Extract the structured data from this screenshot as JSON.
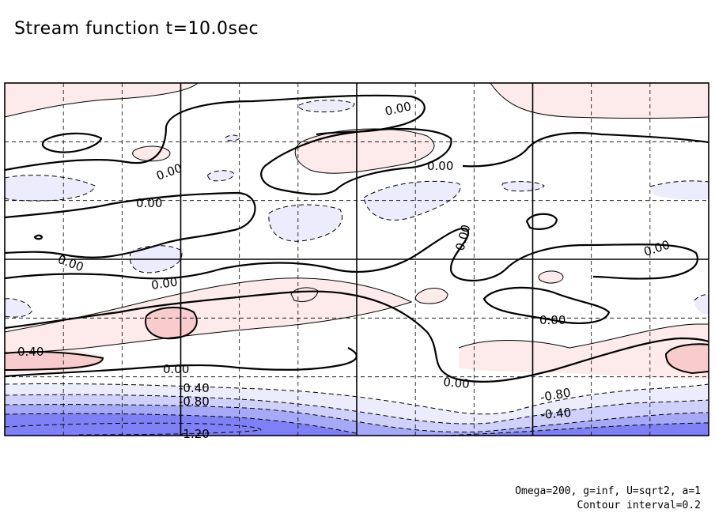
{
  "chart_data": {
    "type": "heatmap",
    "title": "Stream function t=10.0sec",
    "annotations": {
      "params": "Omega=200, g=inf, U=sqrt2, a=1",
      "interval": "Contour interval=0.2"
    },
    "contour_interval": 0.2,
    "contour_levels_labeled": [
      {
        "value": "0.00"
      },
      {
        "value": "0.00"
      },
      {
        "value": "0.00"
      },
      {
        "value": "0.00"
      },
      {
        "value": "0.00"
      },
      {
        "value": "0.00"
      },
      {
        "value": "0.00"
      },
      {
        "value": "0.00"
      },
      {
        "value": "0.00"
      },
      {
        "value": "0.00"
      },
      {
        "value": "0.00"
      },
      {
        "value": "0.40"
      },
      {
        "value": "-0.40"
      },
      {
        "value": "-0.80"
      },
      {
        "value": "-0.80"
      },
      {
        "value": "-0.40"
      },
      {
        "value": "-1.20"
      }
    ],
    "fill_colors": {
      "positive_light": "#fdeaea",
      "positive_mid": "#f8cccc",
      "negative_light": "#ececfd",
      "negative_mid": "#cfd0fb",
      "negative_strong": "#a6a8f8",
      "negative_deep": "#7f80f5"
    },
    "grid": true,
    "grid_style": "dashed with solid major lines"
  }
}
